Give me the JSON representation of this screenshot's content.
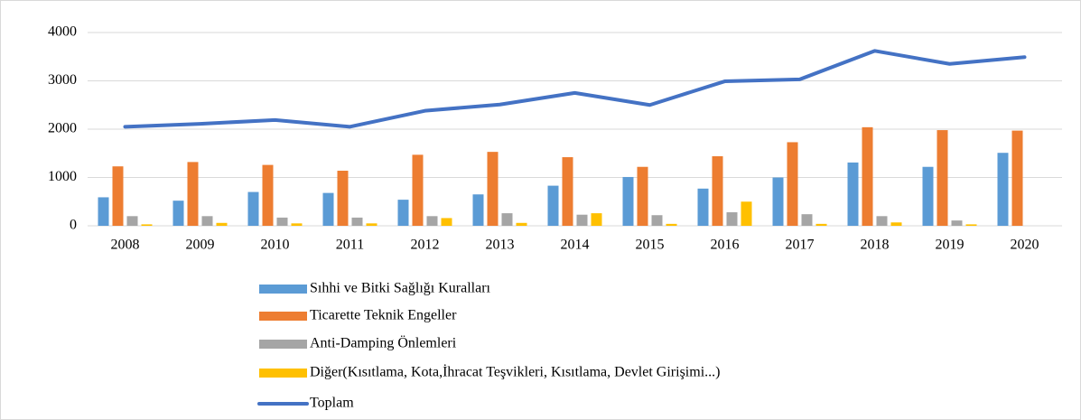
{
  "chart_data": {
    "type": "bar",
    "categories": [
      "2008",
      "2009",
      "2010",
      "2011",
      "2012",
      "2013",
      "2014",
      "2015",
      "2016",
      "2017",
      "2018",
      "2019",
      "2020"
    ],
    "series": [
      {
        "name": "Sıhhi ve Bitki Sağlığı Kuralları",
        "color": "#5b9bd5",
        "values": [
          590,
          520,
          700,
          680,
          540,
          650,
          830,
          1010,
          770,
          1000,
          1310,
          1220,
          1510
        ]
      },
      {
        "name": "Ticarette Teknik Engeller",
        "color": "#ed7d31",
        "values": [
          1230,
          1320,
          1260,
          1140,
          1470,
          1530,
          1420,
          1220,
          1440,
          1730,
          2040,
          1980,
          1970
        ]
      },
      {
        "name": "Anti-Damping Önlemleri",
        "color": "#a5a5a5",
        "values": [
          200,
          200,
          170,
          170,
          200,
          260,
          230,
          220,
          280,
          240,
          200,
          110,
          0
        ]
      },
      {
        "name": "Diğer(Kısıtlama, Kota,İhracat Teşvikleri, Kısıtlama, Devlet Girişimi...)",
        "color": "#ffc000",
        "values": [
          30,
          60,
          50,
          50,
          160,
          60,
          260,
          40,
          500,
          40,
          70,
          30,
          0
        ]
      },
      {
        "name": "Toplam",
        "type": "line",
        "color": "#4472c4",
        "values": [
          2050,
          2110,
          2190,
          2050,
          2380,
          2510,
          2750,
          2500,
          2990,
          3030,
          3620,
          3350,
          3490
        ]
      }
    ],
    "ylim": [
      0,
      4000
    ],
    "yticks": [
      0,
      1000,
      2000,
      3000,
      4000
    ],
    "grid": true,
    "legend": "bottom"
  }
}
